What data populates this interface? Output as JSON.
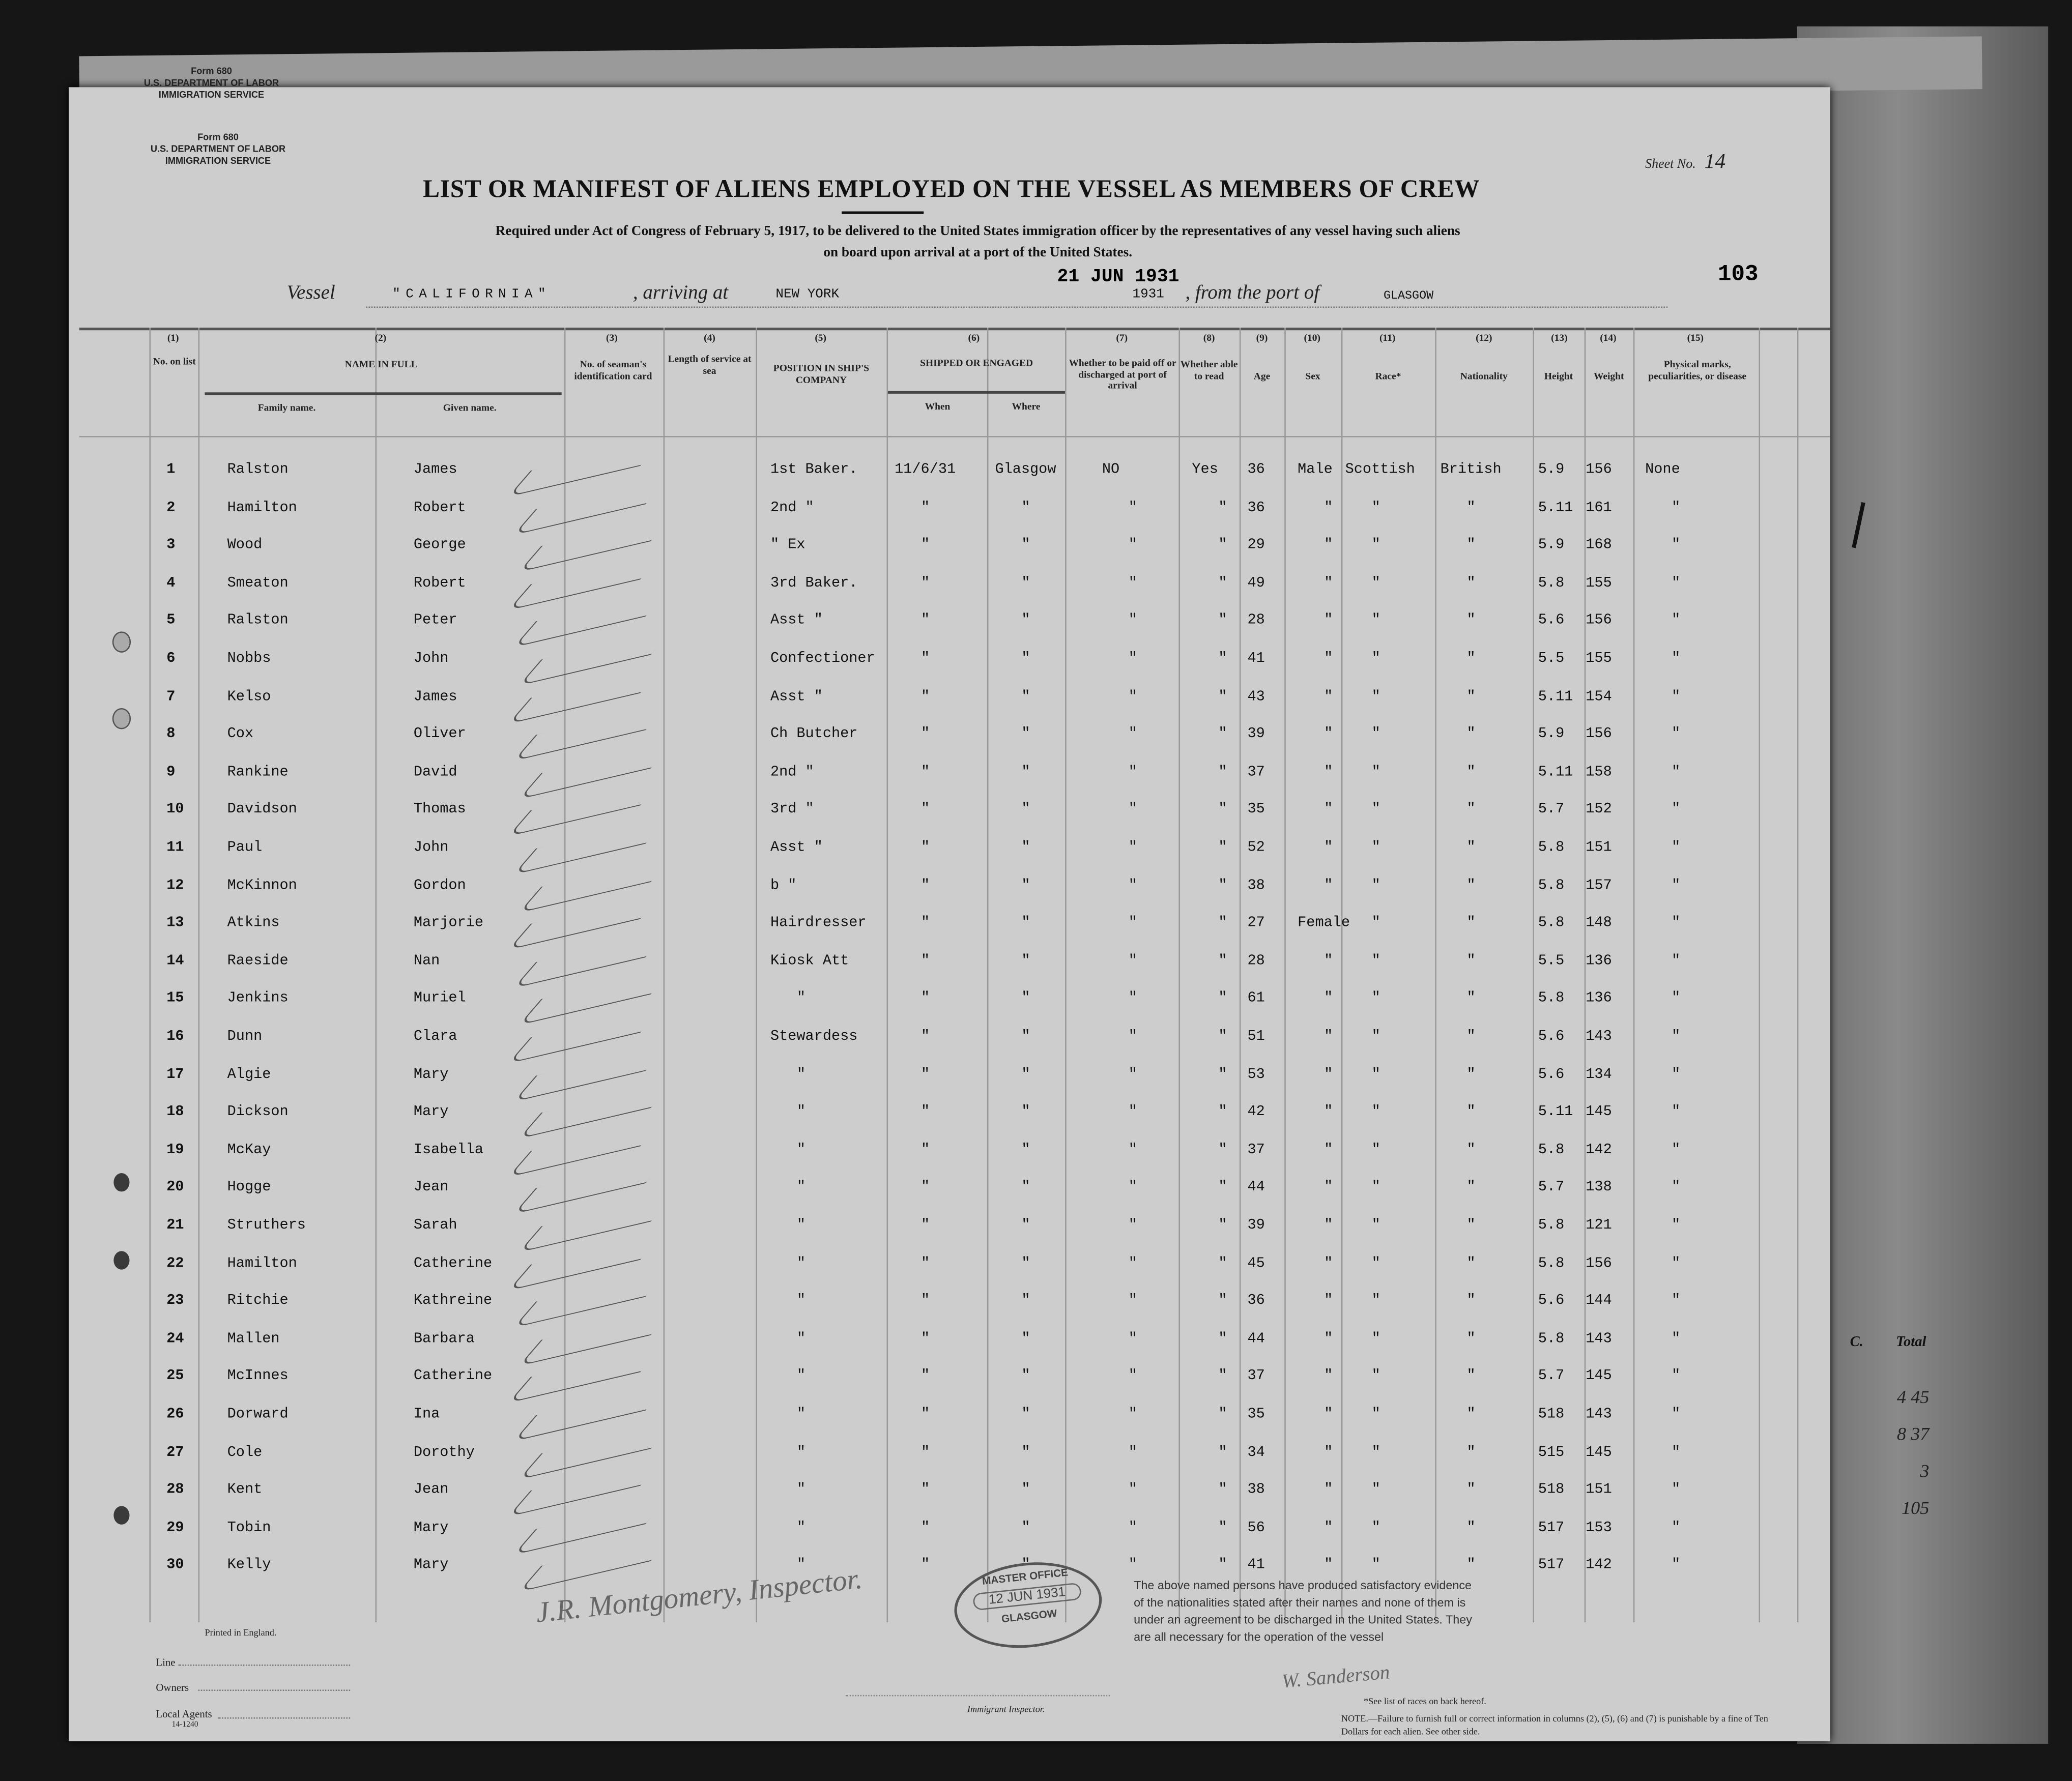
{
  "form_header_top": {
    "form": "Form 680",
    "dept": "U.S. DEPARTMENT OF LABOR",
    "service": "IMMIGRATION SERVICE"
  },
  "form_header": {
    "form": "Form 680",
    "dept": "U.S. DEPARTMENT OF LABOR",
    "service": "IMMIGRATION SERVICE"
  },
  "sheet": {
    "label": "Sheet No.",
    "value": "14"
  },
  "title": "LIST OR MANIFEST OF ALIENS EMPLOYED ON THE VESSEL AS MEMBERS OF CREW",
  "subtitle_1": "Required under Act of Congress of February 5, 1917, to be delivered to the United States immigration officer by the representatives of any vessel having such aliens",
  "subtitle_2": "on board upon arrival at a port of the United States.",
  "page_number": "103",
  "voyage": {
    "vessel_label": "Vessel",
    "vessel": "\"CALIFORNIA\"",
    "arriving_label": ", arriving at",
    "arriving": "NEW YORK",
    "date_stamp": "21 JUN 1931",
    "year": "1931",
    "from_label": ", from the port of",
    "from_port": "GLASGOW"
  },
  "columns": {
    "numbers": [
      "(1)",
      "(2)",
      "(3)",
      "(4)",
      "(5)",
      "(6)",
      "(7)",
      "(8)",
      "(9)",
      "(10)",
      "(11)",
      "(12)",
      "(13)",
      "(14)",
      "(15)"
    ],
    "no_on_list": "No. on list",
    "name_in_full": "NAME IN FULL",
    "family_name": "Family name.",
    "given_name": "Given name.",
    "seaman_card": "No. of seaman's identification card",
    "length_service": "Length of service at sea",
    "position": "POSITION IN SHIP'S COMPANY",
    "shipped": "SHIPPED OR ENGAGED",
    "when": "When",
    "where": "Where",
    "paid_off": "Whether to be paid off or discharged at port of arrival",
    "able_read": "Whether able to read",
    "age": "Age",
    "sex": "Sex",
    "race": "Race*",
    "nationality": "Nationality",
    "height": "Height",
    "weight": "Weight",
    "physical": "Physical marks, peculiarities, or disease"
  },
  "rows": [
    [
      "1",
      "Ralston",
      "James",
      "1st Baker.",
      "11/6/31",
      "Glasgow",
      "NO",
      "Yes",
      "36",
      "Male",
      "Scottish",
      "British",
      "5.9",
      "156",
      "None"
    ],
    [
      "2",
      "Hamilton",
      "Robert",
      "2nd \"",
      "\"",
      "\"",
      "\"",
      "\"",
      "36",
      "\"",
      "\"",
      "\"",
      "5.11",
      "161",
      "\""
    ],
    [
      "3",
      "Wood",
      "George",
      "\" Ex",
      "\"",
      "\"",
      "\"",
      "\"",
      "29",
      "\"",
      "\"",
      "\"",
      "5.9",
      "168",
      "\""
    ],
    [
      "4",
      "Smeaton",
      "Robert",
      "3rd Baker.",
      "\"",
      "\"",
      "\"",
      "\"",
      "49",
      "\"",
      "\"",
      "\"",
      "5.8",
      "155",
      "\""
    ],
    [
      "5",
      "Ralston",
      "Peter",
      "Asst \"",
      "\"",
      "\"",
      "\"",
      "\"",
      "28",
      "\"",
      "\"",
      "\"",
      "5.6",
      "156",
      "\""
    ],
    [
      "6",
      "Nobbs",
      "John",
      "Confectioner",
      "\"",
      "\"",
      "\"",
      "\"",
      "41",
      "\"",
      "\"",
      "\"",
      "5.5",
      "155",
      "\""
    ],
    [
      "7",
      "Kelso",
      "James",
      "Asst \"",
      "\"",
      "\"",
      "\"",
      "\"",
      "43",
      "\"",
      "\"",
      "\"",
      "5.11",
      "154",
      "\""
    ],
    [
      "8",
      "Cox",
      "Oliver",
      "Ch Butcher",
      "\"",
      "\"",
      "\"",
      "\"",
      "39",
      "\"",
      "\"",
      "\"",
      "5.9",
      "156",
      "\""
    ],
    [
      "9",
      "Rankine",
      "David",
      "2nd \"",
      "\"",
      "\"",
      "\"",
      "\"",
      "37",
      "\"",
      "\"",
      "\"",
      "5.11",
      "158",
      "\""
    ],
    [
      "10",
      "Davidson",
      "Thomas",
      "3rd \"",
      "\"",
      "\"",
      "\"",
      "\"",
      "35",
      "\"",
      "\"",
      "\"",
      "5.7",
      "152",
      "\""
    ],
    [
      "11",
      "Paul",
      "John",
      "Asst \"",
      "\"",
      "\"",
      "\"",
      "\"",
      "52",
      "\"",
      "\"",
      "\"",
      "5.8",
      "151",
      "\""
    ],
    [
      "12",
      "McKinnon",
      "Gordon",
      "b \"",
      "\"",
      "\"",
      "\"",
      "\"",
      "38",
      "\"",
      "\"",
      "\"",
      "5.8",
      "157",
      "\""
    ],
    [
      "13",
      "Atkins",
      "Marjorie",
      "Hairdresser",
      "\"",
      "\"",
      "\"",
      "\"",
      "27",
      "Female",
      "\"",
      "\"",
      "5.8",
      "148",
      "\""
    ],
    [
      "14",
      "Raeside",
      "Nan",
      "Kiosk Att",
      "\"",
      "\"",
      "\"",
      "\"",
      "28",
      "\"",
      "\"",
      "\"",
      "5.5",
      "136",
      "\""
    ],
    [
      "15",
      "Jenkins",
      "Muriel",
      "\"",
      "\"",
      "\"",
      "\"",
      "\"",
      "61",
      "\"",
      "\"",
      "\"",
      "5.8",
      "136",
      "\""
    ],
    [
      "16",
      "Dunn",
      "Clara",
      "Stewardess",
      "\"",
      "\"",
      "\"",
      "\"",
      "51",
      "\"",
      "\"",
      "\"",
      "5.6",
      "143",
      "\""
    ],
    [
      "17",
      "Algie",
      "Mary",
      "\"",
      "\"",
      "\"",
      "\"",
      "\"",
      "53",
      "\"",
      "\"",
      "\"",
      "5.6",
      "134",
      "\""
    ],
    [
      "18",
      "Dickson",
      "Mary",
      "\"",
      "\"",
      "\"",
      "\"",
      "\"",
      "42",
      "\"",
      "\"",
      "\"",
      "5.11",
      "145",
      "\""
    ],
    [
      "19",
      "McKay",
      "Isabella",
      "\"",
      "\"",
      "\"",
      "\"",
      "\"",
      "37",
      "\"",
      "\"",
      "\"",
      "5.8",
      "142",
      "\""
    ],
    [
      "20",
      "Hogge",
      "Jean",
      "\"",
      "\"",
      "\"",
      "\"",
      "\"",
      "44",
      "\"",
      "\"",
      "\"",
      "5.7",
      "138",
      "\""
    ],
    [
      "21",
      "Struthers",
      "Sarah",
      "\"",
      "\"",
      "\"",
      "\"",
      "\"",
      "39",
      "\"",
      "\"",
      "\"",
      "5.8",
      "121",
      "\""
    ],
    [
      "22",
      "Hamilton",
      "Catherine",
      "\"",
      "\"",
      "\"",
      "\"",
      "\"",
      "45",
      "\"",
      "\"",
      "\"",
      "5.8",
      "156",
      "\""
    ],
    [
      "23",
      "Ritchie",
      "Kathreine",
      "\"",
      "\"",
      "\"",
      "\"",
      "\"",
      "36",
      "\"",
      "\"",
      "\"",
      "5.6",
      "144",
      "\""
    ],
    [
      "24",
      "Mallen",
      "Barbara",
      "\"",
      "\"",
      "\"",
      "\"",
      "\"",
      "44",
      "\"",
      "\"",
      "\"",
      "5.8",
      "143",
      "\""
    ],
    [
      "25",
      "McInnes",
      "Catherine",
      "\"",
      "\"",
      "\"",
      "\"",
      "\"",
      "37",
      "\"",
      "\"",
      "\"",
      "5.7",
      "145",
      "\""
    ],
    [
      "26",
      "Dorward",
      "Ina",
      "\"",
      "\"",
      "\"",
      "\"",
      "\"",
      "35",
      "\"",
      "\"",
      "\"",
      "518",
      "143",
      "\""
    ],
    [
      "27",
      "Cole",
      "Dorothy",
      "\"",
      "\"",
      "\"",
      "\"",
      "\"",
      "34",
      "\"",
      "\"",
      "\"",
      "515",
      "145",
      "\""
    ],
    [
      "28",
      "Kent",
      "Jean",
      "\"",
      "\"",
      "\"",
      "\"",
      "\"",
      "38",
      "\"",
      "\"",
      "\"",
      "518",
      "151",
      "\""
    ],
    [
      "29",
      "Tobin",
      "Mary",
      "\"",
      "\"",
      "\"",
      "\"",
      "\"",
      "56",
      "\"",
      "\"",
      "\"",
      "517",
      "153",
      "\""
    ],
    [
      "30",
      "Kelly",
      "Mary",
      "\"",
      "\"",
      "\"",
      "\"",
      "\"",
      "41",
      "\"",
      "\"",
      "\"",
      "517",
      "142",
      "\""
    ]
  ],
  "footer": {
    "printed": "Printed in England.",
    "line": "Line",
    "owners": "Owners",
    "local_agents": "Local Agents",
    "form_code": "14-1240",
    "inspector_label": "Immigrant Inspector.",
    "inspector_signature": "J.R. Montgomery, Inspector.",
    "postmark": {
      "top": "MASTER OFFICE",
      "date": "12 JUN 1931",
      "bottom": "GLASGOW"
    },
    "declaration": "The above named persons have produced satisfactory evidence of the nationalities stated after their names and none of them is under an agreement to be discharged in the United States. They are all necessary for the operation of the vessel",
    "master_signature": "W. Sanderson",
    "race_note": "*See list of races on back hereof.",
    "note": "NOTE.—Failure to furnish full or correct information in columns (2), (5), (6) and (7) is punishable by a fine of Ten Dollars for each alien. See other side."
  },
  "margin_notes": {
    "c": "C.",
    "total": "Total",
    "values": [
      "4 45",
      "8 37",
      "3",
      "105"
    ]
  }
}
